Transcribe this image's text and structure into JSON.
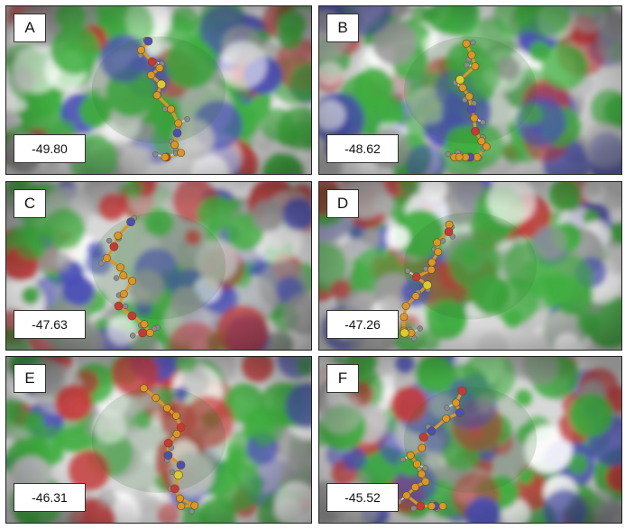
{
  "panels": [
    {
      "label": "A",
      "score": "-49.80"
    },
    {
      "label": "B",
      "score": "-48.62"
    },
    {
      "label": "C",
      "score": "-47.63"
    },
    {
      "label": "D",
      "score": "-47.26"
    },
    {
      "label": "E",
      "score": "-46.31"
    },
    {
      "label": "F",
      "score": "-45.52"
    }
  ],
  "colors": {
    "surface_base": "#d8d8d8",
    "hydrophobic_green": "#3fae3f",
    "nitrogen_blue": "#4a4fb8",
    "oxygen_red": "#c43a3a",
    "carbon_orange": "#d9972a",
    "hydrogen_grey": "#8a8a8a",
    "sulfur_yellow": "#d8cc30"
  }
}
